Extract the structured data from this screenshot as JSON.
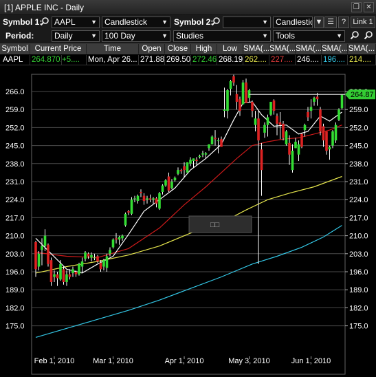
{
  "window": {
    "title": "[1] APPLE INC - Daily",
    "restore_glyph": "❐",
    "close_glyph": "✕"
  },
  "toolbar1": {
    "symbol1_label": "Symbol 1:",
    "symbol1_value": "AAPL",
    "chart_style": "Candlestick",
    "symbol2_label": "Symbol 2:",
    "symbol2_value": "",
    "chart_style2": "Candlestick",
    "help_label": "?",
    "link_label": "Link 1"
  },
  "toolbar2": {
    "period_label": "Period:",
    "period_value": "Daily",
    "range_value": "100 Day",
    "studies_value": "Studies",
    "tools_value": "Tools"
  },
  "quote": {
    "headers": [
      "Symbol",
      "Current Price",
      "Time",
      "Open",
      "Close",
      "High",
      "Low",
      "SMA(...",
      "SMA(...",
      "SMA(...",
      "SMA(...",
      "SMA(..."
    ],
    "symbol": "AAPL",
    "current_price": "264.8701",
    "change": "+5....",
    "time": "Mon, Apr 26...",
    "open": "271.88",
    "close": "269.50",
    "high": "272.46",
    "low": "268.19",
    "sma1": "262....",
    "sma2": "227....",
    "sma3": "246....",
    "sma4": "196....",
    "sma5": "214....",
    "colors": {
      "price": "#33cc33",
      "high": "#33cc33",
      "sma1": "#e6e64d",
      "sma2": "#e23c3c",
      "sma3": "#ffffff",
      "sma4": "#33c7e6",
      "sma5": "#e6e64d"
    }
  },
  "chart": {
    "price_ticks": [
      "266.0",
      "259.0",
      "252.0",
      "245.0",
      "238.0",
      "231.0",
      "224.0",
      "217.0",
      "210.0",
      "203.0",
      "196.0",
      "189.0",
      "182.0",
      "175.0"
    ],
    "date_ticks": [
      "Feb 1, 2010",
      "Mar 1, 2010",
      "Apr 1, 2010",
      "May 3, 2010",
      "Jun 1, 2010"
    ],
    "last_price_label": "264.87",
    "tooltip_text": "□□",
    "colors": {
      "up": "#33dd33",
      "down": "#dd2222",
      "sma_white": "#ffffff",
      "sma_red": "#cc1a1a",
      "sma_yellow": "#e6e64d",
      "sma_cyan": "#33c7e6",
      "grid": "#4a4a4a"
    }
  },
  "chart_data": {
    "type": "candlestick",
    "title": "APPLE INC - Daily",
    "xlabel": "",
    "ylabel": "",
    "ylim": [
      170,
      270
    ],
    "x": [
      "2010-01-22",
      "2010-01-25",
      "2010-01-26",
      "2010-01-27",
      "2010-01-28",
      "2010-01-29",
      "2010-02-01",
      "2010-02-02",
      "2010-02-03",
      "2010-02-04",
      "2010-02-05",
      "2010-02-08",
      "2010-02-09",
      "2010-02-10",
      "2010-02-11",
      "2010-02-12",
      "2010-02-16",
      "2010-02-17",
      "2010-02-18",
      "2010-02-19",
      "2010-02-22",
      "2010-02-23",
      "2010-02-24",
      "2010-02-25",
      "2010-02-26",
      "2010-03-01",
      "2010-03-02",
      "2010-03-03",
      "2010-03-04",
      "2010-03-05",
      "2010-03-08",
      "2010-03-09",
      "2010-03-10",
      "2010-03-11",
      "2010-03-12",
      "2010-03-15",
      "2010-03-16",
      "2010-03-17",
      "2010-03-18",
      "2010-03-19",
      "2010-03-22",
      "2010-03-23",
      "2010-03-24",
      "2010-03-25",
      "2010-03-26",
      "2010-03-29",
      "2010-03-30",
      "2010-03-31",
      "2010-04-01",
      "2010-04-05",
      "2010-04-06",
      "2010-04-07",
      "2010-04-08",
      "2010-04-09",
      "2010-04-12",
      "2010-04-13",
      "2010-04-14",
      "2010-04-15",
      "2010-04-16",
      "2010-04-19",
      "2010-04-20",
      "2010-04-21",
      "2010-04-22",
      "2010-04-23",
      "2010-04-26",
      "2010-04-27",
      "2010-04-28",
      "2010-04-29",
      "2010-04-30",
      "2010-05-03",
      "2010-05-04",
      "2010-05-05",
      "2010-05-06",
      "2010-05-07",
      "2010-05-10",
      "2010-05-11",
      "2010-05-12",
      "2010-05-13",
      "2010-05-14",
      "2010-05-17",
      "2010-05-18",
      "2010-05-19",
      "2010-05-20",
      "2010-05-21",
      "2010-05-24",
      "2010-05-25",
      "2010-05-26",
      "2010-05-27",
      "2010-05-28",
      "2010-06-01",
      "2010-06-02",
      "2010-06-03",
      "2010-06-04",
      "2010-06-07",
      "2010-06-08",
      "2010-06-09",
      "2010-06-10",
      "2010-06-11",
      "2010-06-14",
      "2010-06-15"
    ],
    "ohlc": [
      [
        207.5,
        208.0,
        194.0,
        197.0
      ],
      [
        198.0,
        204.0,
        196.5,
        203.0
      ],
      [
        204.5,
        209.0,
        198.5,
        206.0
      ],
      [
        206.0,
        212.5,
        204.0,
        210.0
      ],
      [
        206.5,
        207.0,
        198.0,
        199.0
      ],
      [
        200.5,
        201.5,
        190.5,
        192.0
      ],
      [
        194.0,
        196.5,
        192.0,
        195.0
      ],
      [
        195.0,
        196.0,
        190.5,
        193.5
      ],
      [
        193.0,
        200.5,
        192.5,
        199.0
      ],
      [
        197.0,
        198.0,
        191.0,
        192.0
      ],
      [
        192.0,
        196.5,
        190.5,
        195.0
      ],
      [
        195.0,
        197.0,
        193.0,
        194.0
      ],
      [
        195.5,
        198.0,
        194.0,
        197.0
      ],
      [
        196.0,
        196.5,
        194.0,
        195.0
      ],
      [
        195.0,
        199.5,
        194.5,
        199.0
      ],
      [
        198.0,
        201.5,
        195.5,
        200.0
      ],
      [
        201.0,
        204.0,
        200.0,
        203.5
      ],
      [
        203.0,
        203.5,
        201.0,
        202.0
      ],
      [
        201.5,
        203.5,
        200.0,
        202.5
      ],
      [
        201.5,
        203.0,
        200.5,
        201.5
      ],
      [
        202.0,
        202.5,
        199.5,
        200.0
      ],
      [
        199.5,
        200.5,
        196.0,
        197.0
      ],
      [
        198.0,
        201.0,
        196.5,
        200.5
      ],
      [
        197.5,
        203.0,
        196.0,
        202.0
      ],
      [
        203.0,
        205.5,
        202.0,
        204.5
      ],
      [
        205.5,
        209.0,
        205.0,
        208.5
      ],
      [
        209.0,
        211.0,
        207.0,
        208.5
      ],
      [
        208.5,
        210.0,
        206.5,
        209.5
      ],
      [
        209.0,
        210.5,
        208.0,
        210.0
      ],
      [
        214.0,
        219.0,
        213.5,
        218.5
      ],
      [
        219.5,
        220.0,
        218.0,
        219.0
      ],
      [
        218.5,
        225.0,
        218.0,
        224.0
      ],
      [
        224.5,
        225.5,
        223.0,
        224.5
      ],
      [
        223.5,
        226.0,
        222.5,
        225.5
      ],
      [
        227.0,
        228.0,
        225.0,
        226.5
      ],
      [
        225.5,
        226.5,
        222.0,
        223.5
      ],
      [
        224.0,
        225.5,
        222.5,
        224.5
      ],
      [
        224.5,
        226.0,
        223.0,
        224.0
      ],
      [
        224.0,
        225.0,
        222.5,
        224.5
      ],
      [
        224.5,
        225.0,
        221.0,
        222.5
      ],
      [
        220.5,
        227.0,
        220.0,
        226.5
      ],
      [
        227.0,
        230.0,
        226.0,
        229.5
      ],
      [
        229.5,
        232.0,
        229.0,
        231.5
      ],
      [
        233.0,
        234.5,
        227.0,
        227.5
      ],
      [
        228.5,
        232.0,
        228.0,
        231.0
      ],
      [
        231.5,
        233.0,
        231.0,
        232.5
      ],
      [
        234.0,
        236.5,
        233.5,
        235.5
      ],
      [
        235.5,
        236.0,
        234.0,
        235.0
      ],
      [
        237.0,
        238.5,
        232.5,
        235.5
      ],
      [
        234.5,
        238.5,
        234.5,
        238.5
      ],
      [
        238.0,
        240.5,
        237.0,
        239.5
      ],
      [
        239.0,
        240.0,
        236.5,
        240.0
      ],
      [
        239.5,
        240.5,
        237.5,
        239.0
      ],
      [
        240.5,
        241.5,
        240.0,
        241.0
      ],
      [
        241.5,
        243.0,
        240.5,
        242.0
      ],
      [
        241.5,
        242.5,
        240.0,
        242.0
      ],
      [
        244.0,
        245.5,
        243.0,
        245.5
      ],
      [
        245.5,
        249.0,
        245.5,
        248.5
      ],
      [
        248.0,
        251.0,
        245.0,
        247.5
      ],
      [
        247.0,
        248.0,
        242.0,
        247.0
      ],
      [
        247.5,
        248.5,
        245.5,
        244.5
      ],
      [
        258.5,
        267.5,
        256.0,
        259.0
      ],
      [
        258.5,
        267.0,
        255.5,
        266.5
      ],
      [
        267.0,
        270.5,
        264.5,
        270.0
      ],
      [
        271.9,
        272.5,
        268.2,
        269.5
      ],
      [
        265.0,
        268.5,
        259.0,
        262.0
      ],
      [
        263.0,
        264.0,
        256.5,
        258.5
      ],
      [
        261.0,
        270.5,
        261.0,
        269.5
      ],
      [
        269.5,
        271.0,
        261.5,
        261.5
      ],
      [
        263.5,
        267.0,
        262.0,
        266.5
      ],
      [
        262.0,
        262.5,
        256.0,
        258.5
      ],
      [
        253.0,
        258.5,
        250.5,
        255.5
      ],
      [
        255.5,
        258.5,
        199.0,
        247.0
      ],
      [
        243.5,
        246.0,
        225.5,
        235.5
      ],
      [
        250.0,
        254.0,
        248.0,
        253.0
      ],
      [
        253.0,
        257.0,
        248.5,
        256.0
      ],
      [
        257.0,
        262.0,
        256.5,
        262.0
      ],
      [
        262.5,
        263.0,
        257.0,
        258.5
      ],
      [
        256.5,
        257.5,
        249.0,
        253.5
      ],
      [
        254.0,
        258.0,
        247.5,
        253.0
      ],
      [
        253.5,
        254.5,
        247.0,
        248.0
      ],
      [
        245.5,
        251.0,
        245.0,
        250.5
      ],
      [
        246.0,
        249.0,
        237.5,
        241.5
      ],
      [
        235.5,
        245.5,
        234.5,
        243.0
      ],
      [
        244.0,
        248.0,
        244.0,
        246.5
      ],
      [
        241.5,
        247.0,
        239.0,
        245.5
      ],
      [
        249.5,
        250.0,
        244.0,
        244.5
      ],
      [
        251.0,
        253.5,
        248.5,
        253.0
      ],
      [
        258.0,
        260.0,
        254.5,
        256.0
      ],
      [
        258.5,
        263.0,
        255.5,
        260.0
      ],
      [
        262.0,
        264.0,
        260.5,
        263.5
      ],
      [
        264.0,
        265.5,
        260.5,
        263.0
      ],
      [
        259.0,
        260.0,
        249.0,
        250.5
      ],
      [
        252.5,
        253.5,
        244.5,
        247.0
      ],
      [
        250.5,
        250.5,
        241.5,
        243.0
      ],
      [
        243.5,
        245.0,
        239.5,
        244.5
      ],
      [
        245.0,
        251.0,
        244.0,
        250.5
      ],
      [
        247.0,
        254.0,
        246.0,
        253.0
      ],
      [
        255.0,
        259.5,
        254.5,
        259.0
      ],
      [
        259.5,
        265.0,
        259.0,
        264.9
      ]
    ],
    "series": [
      {
        "name": "SMA",
        "color": "#ffffff"
      },
      {
        "name": "SMA",
        "color": "#cc1a1a"
      },
      {
        "name": "SMA",
        "color": "#e6e64d"
      },
      {
        "name": "SMA",
        "color": "#33c7e6"
      }
    ],
    "series_values": {
      "sma_white_points": [
        [
          0,
          209
        ],
        [
          5,
          203
        ],
        [
          10,
          197
        ],
        [
          15,
          195.5
        ],
        [
          20,
          199
        ],
        [
          25,
          202
        ],
        [
          30,
          210.5
        ],
        [
          35,
          219.5
        ],
        [
          40,
          224
        ],
        [
          45,
          228.5
        ],
        [
          50,
          235.5
        ],
        [
          55,
          240
        ],
        [
          60,
          245.5
        ],
        [
          64,
          255
        ],
        [
          67,
          261.5
        ],
        [
          70,
          262
        ],
        [
          73,
          257
        ],
        [
          77,
          252.5
        ],
        [
          81,
          253
        ],
        [
          85,
          249.5
        ],
        [
          88,
          250.5
        ],
        [
          92,
          256.5
        ],
        [
          95,
          254.5
        ],
        [
          99,
          258
        ]
      ],
      "sma_red_points": [
        [
          0,
          203.5
        ],
        [
          10,
          202
        ],
        [
          20,
          201.5
        ],
        [
          30,
          205
        ],
        [
          40,
          213
        ],
        [
          48,
          222
        ],
        [
          55,
          229
        ],
        [
          60,
          234.5
        ],
        [
          65,
          240
        ],
        [
          70,
          245
        ],
        [
          75,
          246.5
        ],
        [
          80,
          247.5
        ],
        [
          85,
          248
        ],
        [
          90,
          249.5
        ],
        [
          95,
          251
        ],
        [
          99,
          253
        ]
      ],
      "sma_yellow_points": [
        [
          0,
          195.5
        ],
        [
          10,
          198
        ],
        [
          20,
          200
        ],
        [
          30,
          202.5
        ],
        [
          40,
          206
        ],
        [
          50,
          211
        ],
        [
          60,
          215
        ],
        [
          68,
          220
        ],
        [
          75,
          224
        ],
        [
          82,
          226.5
        ],
        [
          90,
          229
        ],
        [
          99,
          233
        ]
      ],
      "sma_cyan_points": [
        [
          0,
          170.5
        ],
        [
          10,
          174
        ],
        [
          20,
          177.5
        ],
        [
          30,
          181
        ],
        [
          40,
          185
        ],
        [
          50,
          189.5
        ],
        [
          60,
          194
        ],
        [
          70,
          199
        ],
        [
          78,
          202
        ],
        [
          86,
          205.5
        ],
        [
          93,
          209.5
        ],
        [
          99,
          214
        ]
      ]
    },
    "grid": true,
    "last_price": 264.87
  }
}
